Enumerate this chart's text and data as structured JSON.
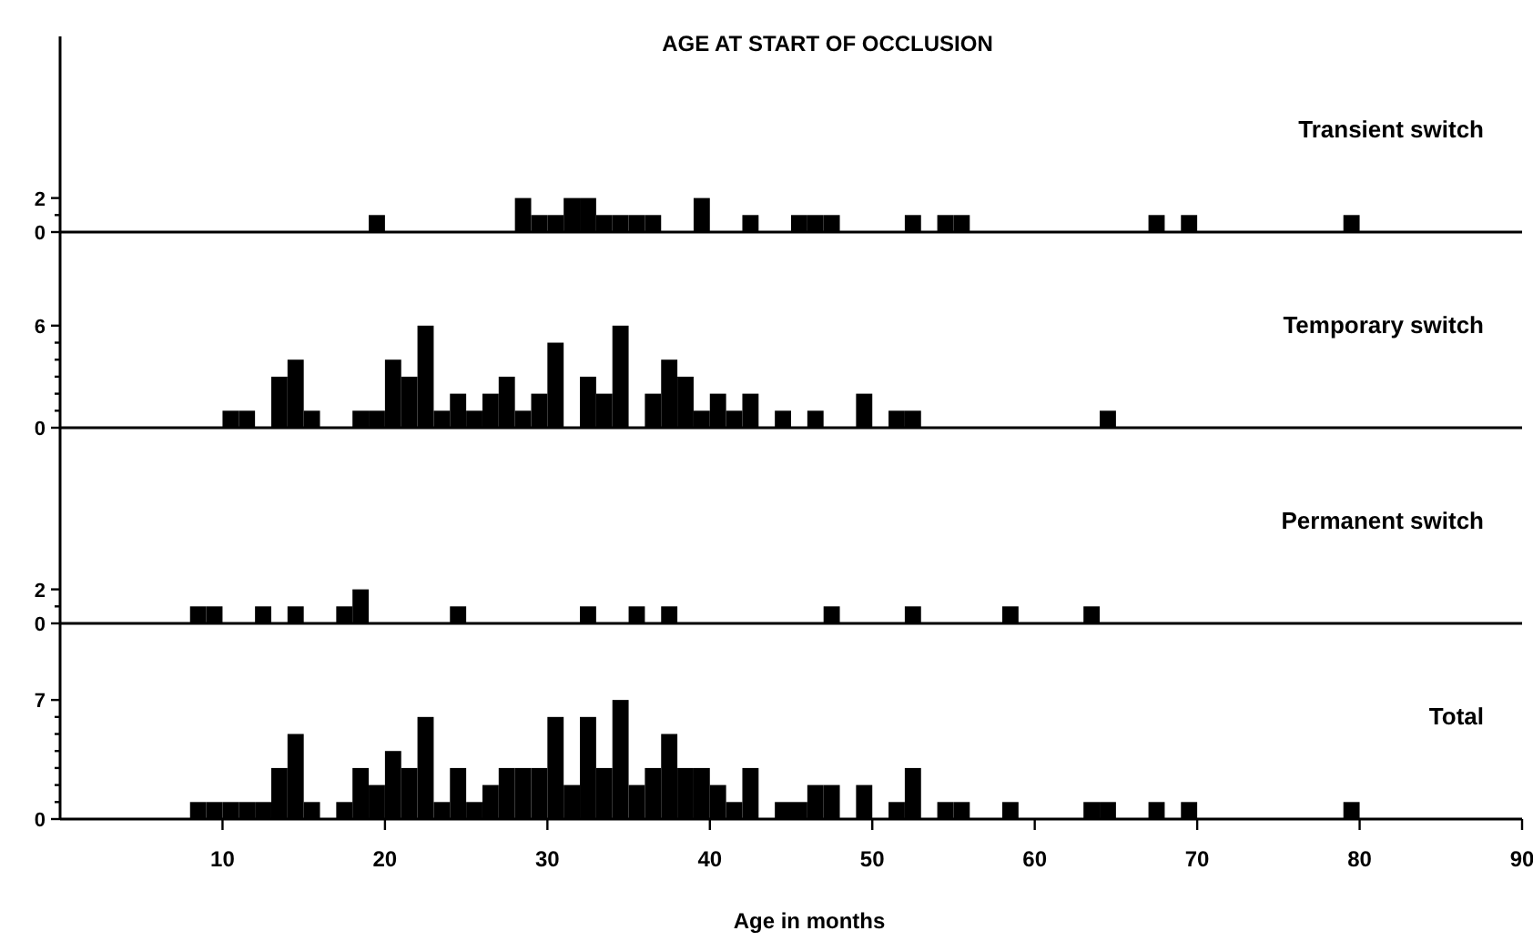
{
  "chart_data": [
    {
      "type": "histogram",
      "title": "AGE AT START OF OCCLUSION",
      "subtitle": "Transient switch",
      "color": "#000000",
      "xlim": [
        0,
        90
      ],
      "ylim": [
        0,
        11.5
      ],
      "yticks": [
        0,
        {
          "value": 1,
          "label": null
        },
        2
      ],
      "tick_labels": "y",
      "bins": [
        8,
        9,
        10,
        11,
        12,
        13,
        14,
        15,
        16,
        17,
        18,
        19,
        20,
        21,
        22,
        23,
        24,
        25,
        26,
        27,
        28,
        29,
        30,
        31,
        32,
        33,
        34,
        35,
        36,
        37,
        38,
        39,
        40,
        41,
        42,
        43,
        44,
        45,
        46,
        47,
        48,
        49,
        50,
        51,
        52,
        53,
        54,
        55,
        56,
        57,
        58,
        59,
        60,
        61,
        62,
        63,
        64,
        65,
        66,
        67,
        68,
        69,
        70,
        71,
        72,
        73,
        74,
        75,
        76,
        77,
        78,
        79,
        80
      ],
      "values": [
        0,
        0,
        0,
        0,
        0,
        0,
        0,
        0,
        0,
        0,
        0,
        1,
        0,
        0,
        0,
        0,
        0,
        0,
        0,
        0,
        2,
        1,
        1,
        2,
        2,
        1,
        1,
        1,
        1,
        0,
        0,
        2,
        0,
        0,
        1,
        0,
        0,
        1,
        1,
        1,
        0,
        0,
        0,
        0,
        1,
        0,
        1,
        1,
        0,
        0,
        0,
        0,
        0,
        0,
        0,
        0,
        0,
        0,
        0,
        1,
        0,
        1,
        0,
        0,
        0,
        0,
        0,
        0,
        0,
        0,
        0,
        1
      ]
    },
    {
      "type": "histogram",
      "subtitle": "Temporary switch",
      "color": "#000000",
      "xlim": [
        0,
        90
      ],
      "ylim": [
        0,
        11.5
      ],
      "yticks": [
        0,
        {
          "value": 1,
          "label": null
        },
        {
          "value": 2,
          "label": null
        },
        {
          "value": 3,
          "label": null
        },
        {
          "value": 4,
          "label": null
        },
        {
          "value": 5,
          "label": null
        },
        6
      ],
      "tick_labels": "y",
      "bins": [
        8,
        9,
        10,
        11,
        12,
        13,
        14,
        15,
        16,
        17,
        18,
        19,
        20,
        21,
        22,
        23,
        24,
        25,
        26,
        27,
        28,
        29,
        30,
        31,
        32,
        33,
        34,
        35,
        36,
        37,
        38,
        39,
        40,
        41,
        42,
        43,
        44,
        45,
        46,
        47,
        48,
        49,
        50,
        51,
        52,
        53,
        54,
        55,
        56,
        57,
        58,
        59,
        60,
        61,
        62,
        63,
        64,
        65,
        66,
        67,
        68,
        69,
        70,
        71,
        72,
        73,
        74,
        75,
        76,
        77,
        78,
        79,
        80
      ],
      "values": [
        0,
        0,
        1,
        1,
        0,
        3,
        4,
        1,
        0,
        0,
        1,
        1,
        4,
        3,
        6,
        1,
        2,
        1,
        2,
        3,
        1,
        2,
        5,
        0,
        3,
        2,
        6,
        0,
        2,
        4,
        3,
        1,
        2,
        1,
        2,
        0,
        1,
        0,
        1,
        0,
        0,
        2,
        0,
        1,
        1,
        0,
        0,
        0,
        0,
        0,
        0,
        0,
        0,
        0,
        0,
        0,
        1,
        0,
        0,
        0,
        0,
        0,
        0,
        0,
        0,
        0,
        0,
        0,
        0,
        0,
        0,
        0
      ]
    },
    {
      "type": "histogram",
      "subtitle": "Permanent switch",
      "color": "#000000",
      "xlim": [
        0,
        90
      ],
      "ylim": [
        0,
        11.5
      ],
      "yticks": [
        0,
        {
          "value": 1,
          "label": null
        },
        2
      ],
      "tick_labels": "y",
      "bins": [
        8,
        9,
        10,
        11,
        12,
        13,
        14,
        15,
        16,
        17,
        18,
        19,
        20,
        21,
        22,
        23,
        24,
        25,
        26,
        27,
        28,
        29,
        30,
        31,
        32,
        33,
        34,
        35,
        36,
        37,
        38,
        39,
        40,
        41,
        42,
        43,
        44,
        45,
        46,
        47,
        48,
        49,
        50,
        51,
        52,
        53,
        54,
        55,
        56,
        57,
        58,
        59,
        60,
        61,
        62,
        63,
        64,
        65,
        66,
        67,
        68,
        69,
        70,
        71,
        72,
        73,
        74,
        75,
        76,
        77,
        78,
        79,
        80
      ],
      "values": [
        1,
        1,
        0,
        0,
        1,
        0,
        1,
        0,
        0,
        1,
        2,
        0,
        0,
        0,
        0,
        0,
        1,
        0,
        0,
        0,
        0,
        0,
        0,
        0,
        1,
        0,
        0,
        1,
        0,
        1,
        0,
        0,
        0,
        0,
        0,
        0,
        0,
        0,
        0,
        1,
        0,
        0,
        0,
        0,
        1,
        0,
        0,
        0,
        0,
        0,
        1,
        0,
        0,
        0,
        0,
        1,
        0,
        0,
        0,
        0,
        0,
        0,
        0,
        0,
        0,
        0,
        0,
        0,
        0,
        0,
        0,
        0
      ]
    },
    {
      "type": "histogram",
      "subtitle": "Total",
      "xlabel": "Age in months",
      "color": "#000000",
      "xlim": [
        0,
        90
      ],
      "xticks": [
        10,
        20,
        30,
        40,
        50,
        60,
        70,
        80,
        90
      ],
      "ylim": [
        0,
        11.5
      ],
      "yticks": [
        0,
        {
          "value": 1,
          "label": null
        },
        {
          "value": 2,
          "label": null
        },
        {
          "value": 3,
          "label": null
        },
        {
          "value": 4,
          "label": null
        },
        {
          "value": 5,
          "label": null
        },
        {
          "value": 6,
          "label": null
        },
        7
      ],
      "bins": [
        8,
        9,
        10,
        11,
        12,
        13,
        14,
        15,
        16,
        17,
        18,
        19,
        20,
        21,
        22,
        23,
        24,
        25,
        26,
        27,
        28,
        29,
        30,
        31,
        32,
        33,
        34,
        35,
        36,
        37,
        38,
        39,
        40,
        41,
        42,
        43,
        44,
        45,
        46,
        47,
        48,
        49,
        50,
        51,
        52,
        53,
        54,
        55,
        56,
        57,
        58,
        59,
        60,
        61,
        62,
        63,
        64,
        65,
        66,
        67,
        68,
        69,
        70,
        71,
        72,
        73,
        74,
        75,
        76,
        77,
        78,
        79,
        80
      ],
      "values": [
        1,
        1,
        1,
        1,
        1,
        3,
        5,
        1,
        0,
        1,
        3,
        2,
        4,
        3,
        6,
        1,
        3,
        1,
        2,
        3,
        3,
        3,
        6,
        2,
        6,
        3,
        7,
        2,
        3,
        5,
        3,
        3,
        2,
        1,
        3,
        0,
        1,
        1,
        2,
        2,
        0,
        2,
        0,
        1,
        3,
        0,
        1,
        1,
        0,
        0,
        1,
        0,
        0,
        0,
        0,
        1,
        1,
        0,
        0,
        1,
        0,
        1,
        0,
        0,
        0,
        0,
        0,
        0,
        0,
        0,
        0,
        1
      ]
    }
  ]
}
